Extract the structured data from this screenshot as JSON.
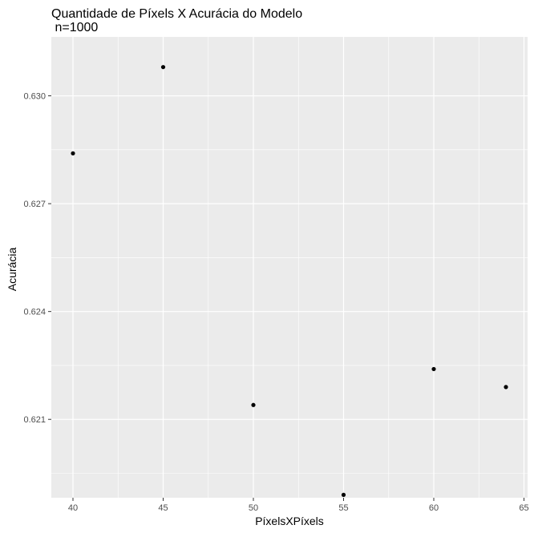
{
  "chart_data": {
    "type": "scatter",
    "title": "Quantidade de Píxels X Acurácia do Modelo",
    "subtitle": " n=1000",
    "xlabel": "PíxelsXPíxels",
    "ylabel": "Acurácia",
    "x": [
      40,
      45,
      50,
      55,
      60,
      64
    ],
    "y": [
      0.6284,
      0.6308,
      0.6214,
      0.6189,
      0.6224,
      0.6219
    ],
    "xlim": [
      38.8,
      65.2
    ],
    "ylim": [
      0.61882,
      0.63164
    ],
    "x_ticks": [
      40,
      45,
      50,
      55,
      60,
      65
    ],
    "x_tick_labels": [
      "40",
      "45",
      "50",
      "55",
      "60",
      "65"
    ],
    "y_ticks": [
      0.621,
      0.624,
      0.627,
      0.63
    ],
    "y_tick_labels": [
      "0.621",
      "0.624",
      "0.627",
      "0.630"
    ],
    "grid": true,
    "point_color": "#000000",
    "panel_color": "#ebebeb",
    "gridline_color": "#ffffff"
  }
}
